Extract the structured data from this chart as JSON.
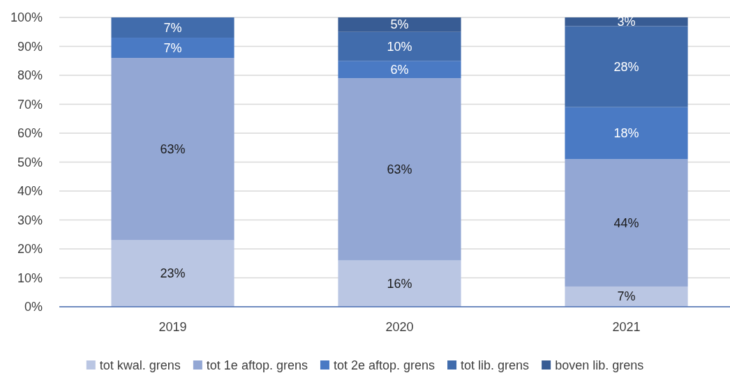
{
  "chart_data": {
    "type": "bar",
    "stacked": true,
    "categories": [
      "2019",
      "2020",
      "2021"
    ],
    "series": [
      {
        "name": "tot kwal. grens",
        "color": "#bac6e3",
        "values": [
          23,
          16,
          7
        ],
        "value_labels": [
          "23%",
          "16%",
          "7%"
        ]
      },
      {
        "name": "tot 1e aftop. grens",
        "color": "#93a7d4",
        "values": [
          63,
          63,
          44
        ],
        "value_labels": [
          "63%",
          "63%",
          "44%"
        ]
      },
      {
        "name": "tot 2e aftop. grens",
        "color": "#4a7ac4",
        "values": [
          7,
          6,
          18
        ],
        "value_labels": [
          "7%",
          "6%",
          "18%"
        ]
      },
      {
        "name": "tot lib. grens",
        "color": "#416cac",
        "values": [
          7,
          10,
          28
        ],
        "value_labels": [
          "7%",
          "10%",
          "28%"
        ]
      },
      {
        "name": "boven lib. grens",
        "color": "#385c94",
        "values": [
          null,
          5,
          3
        ],
        "value_labels": [
          null,
          "5%",
          "3%"
        ]
      }
    ],
    "ylim": [
      0,
      100
    ],
    "yticks": [
      {
        "value": 0,
        "label": "0%"
      },
      {
        "value": 10,
        "label": "10%"
      },
      {
        "value": 20,
        "label": "20%"
      },
      {
        "value": 30,
        "label": "30%"
      },
      {
        "value": 40,
        "label": "40%"
      },
      {
        "value": 50,
        "label": "50%"
      },
      {
        "value": 60,
        "label": "60%"
      },
      {
        "value": 70,
        "label": "70%"
      },
      {
        "value": 80,
        "label": "80%"
      },
      {
        "value": 90,
        "label": "90%"
      },
      {
        "value": 100,
        "label": "100%"
      }
    ],
    "grid": "y",
    "legend": "bottom"
  }
}
